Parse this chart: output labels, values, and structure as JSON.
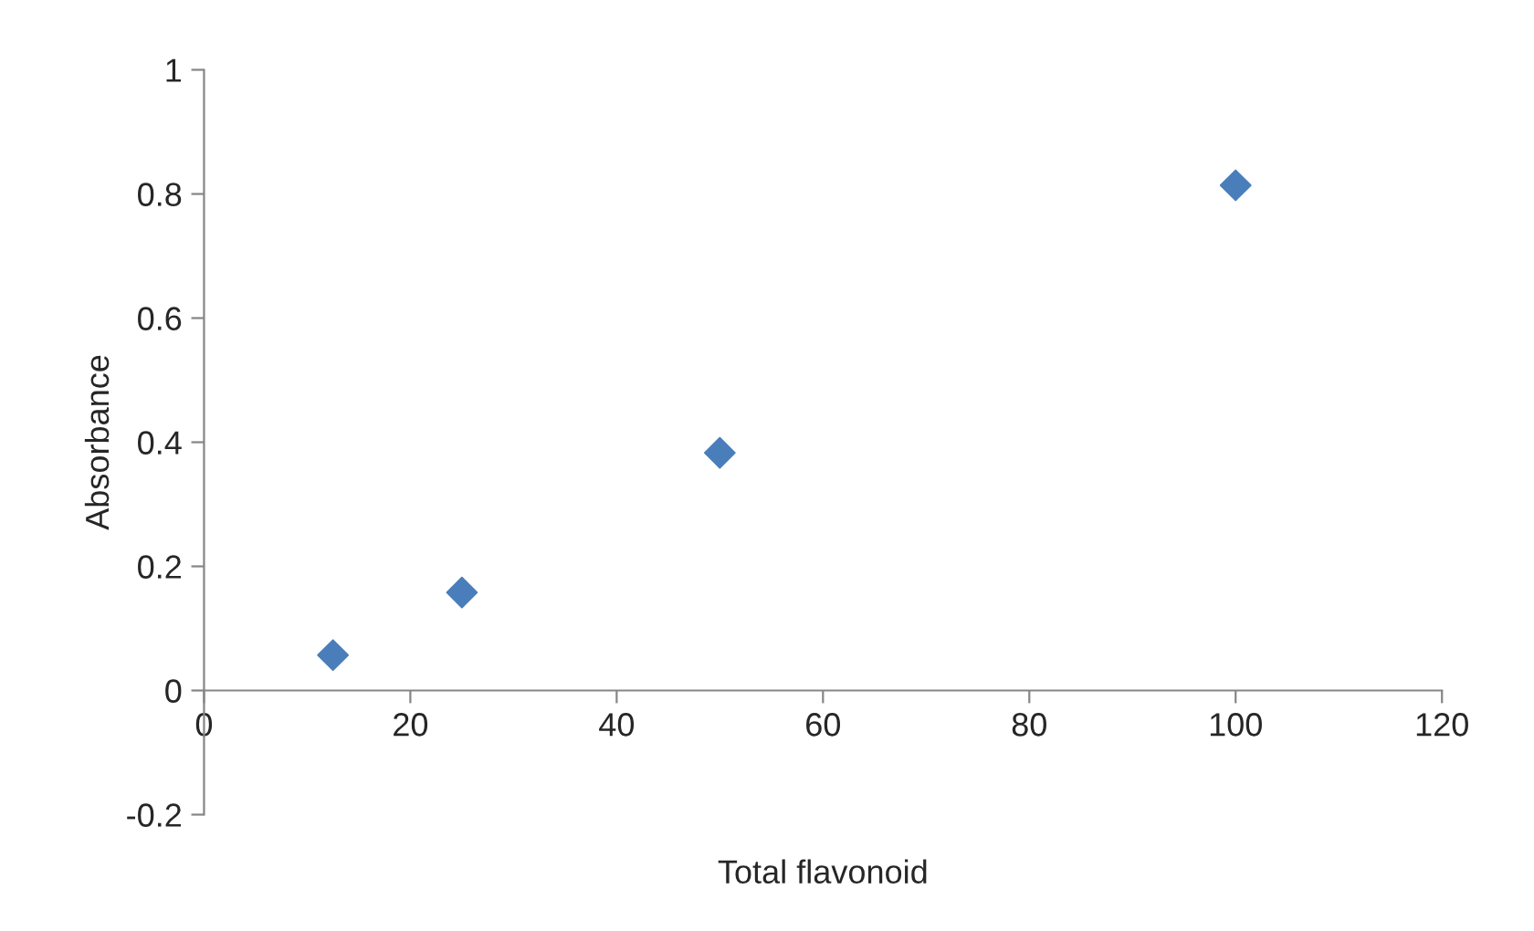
{
  "chart_data": {
    "type": "scatter",
    "xlabel": "Total flavonoid",
    "ylabel": "Absorbance",
    "x": [
      12.5,
      25,
      50,
      100
    ],
    "series": [
      {
        "color": "#4a7ebb",
        "values": [
          0.057,
          0.158,
          0.383,
          0.814
        ]
      }
    ],
    "xlim": [
      0,
      120
    ],
    "xticks": [
      0,
      20,
      40,
      60,
      80,
      100,
      120
    ],
    "ylim": [
      -0.2,
      1
    ],
    "yticks": [
      -0.2,
      0,
      0.2,
      0.4,
      0.6,
      0.8,
      1
    ],
    "marker": "diamond",
    "grid": false,
    "legend": false
  }
}
